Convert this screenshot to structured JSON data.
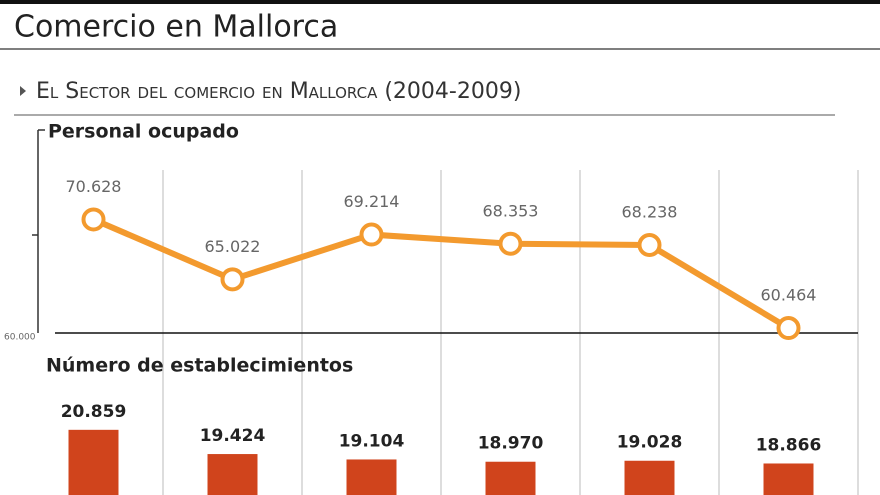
{
  "header": {
    "title": "Comercio en Mallorca",
    "subtitle": "El Sector del comercio en Mallorca (2004-2009)"
  },
  "chart_data": [
    {
      "type": "line",
      "title": "Personal ocupado",
      "values": [
        70628,
        65022,
        69214,
        68353,
        68238,
        60464
      ],
      "value_labels": [
        "70.628",
        "65.022",
        "69.214",
        "68.353",
        "68.238",
        "60.464"
      ],
      "color": "#f39a2e",
      "ylim": [
        60000,
        79000
      ],
      "yticks": [
        {
          "value": 60000,
          "label": "60.000"
        }
      ]
    },
    {
      "type": "bar",
      "title": "Número de establecimientos",
      "values": [
        20859,
        19424,
        19104,
        18970,
        19028,
        18866
      ],
      "value_labels": [
        "20.859",
        "19.424",
        "19.104",
        "18.970",
        "19.028",
        "18.866"
      ],
      "color": "#d0441c",
      "ylim": [
        17000,
        21500
      ]
    }
  ]
}
